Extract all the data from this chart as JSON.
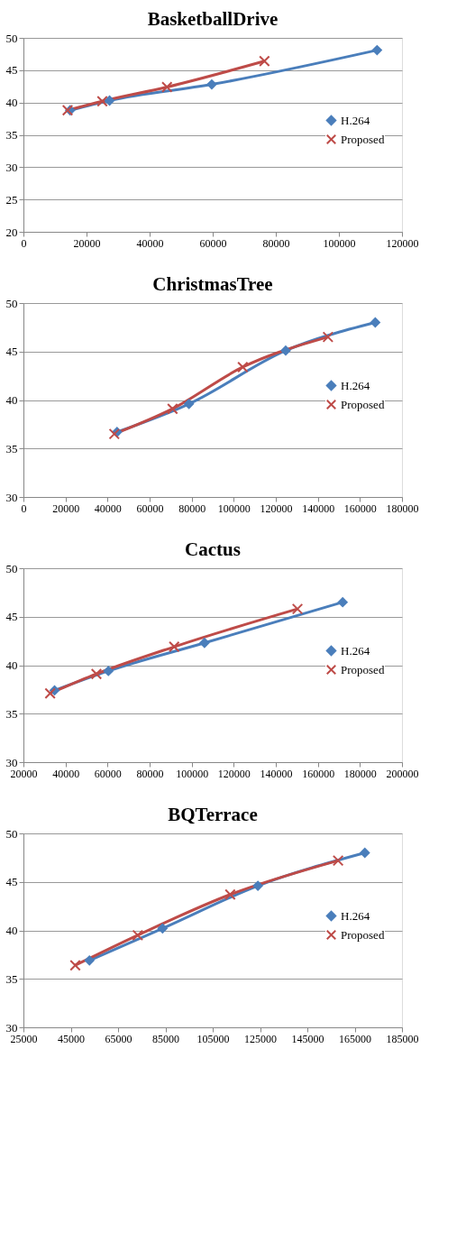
{
  "chart_data": [
    {
      "type": "line",
      "title": "BasketballDrive",
      "xlim": [
        0,
        120000
      ],
      "xticks": [
        0,
        20000,
        40000,
        60000,
        80000,
        100000,
        120000
      ],
      "ylim": [
        20,
        50
      ],
      "yticks": [
        20,
        25,
        30,
        35,
        40,
        45,
        50
      ],
      "grid": "y",
      "legend": "right",
      "series": [
        {
          "name": "H.264",
          "color": "#4a7ebb",
          "marker": "diamond",
          "x": [
            14800,
            27300,
            59700,
            112100
          ],
          "values": [
            38.8,
            40.3,
            42.8,
            48.1
          ]
        },
        {
          "name": "Proposed",
          "color": "#be4b48",
          "marker": "cross",
          "x": [
            14000,
            25000,
            45500,
            76400
          ],
          "values": [
            38.8,
            40.2,
            42.4,
            46.4
          ]
        }
      ]
    },
    {
      "type": "line",
      "title": "ChristmasTree",
      "xlim": [
        0,
        180000
      ],
      "xticks": [
        0,
        20000,
        40000,
        60000,
        80000,
        100000,
        120000,
        140000,
        160000,
        180000
      ],
      "ylim": [
        30,
        50
      ],
      "yticks": [
        30,
        35,
        40,
        45,
        50
      ],
      "grid": "y",
      "legend": "right",
      "series": [
        {
          "name": "H.264",
          "color": "#4a7ebb",
          "marker": "diamond",
          "x": [
            44500,
            78700,
            124700,
            167300
          ],
          "values": [
            36.7,
            39.6,
            45.1,
            48.0
          ]
        },
        {
          "name": "Proposed",
          "color": "#be4b48",
          "marker": "cross",
          "x": [
            43200,
            70900,
            104300,
            144800
          ],
          "values": [
            36.5,
            39.1,
            43.4,
            46.5
          ]
        }
      ]
    },
    {
      "type": "line",
      "title": "Cactus",
      "xlim": [
        20000,
        200000
      ],
      "xticks": [
        20000,
        40000,
        60000,
        80000,
        100000,
        120000,
        140000,
        160000,
        180000,
        200000
      ],
      "ylim": [
        30,
        50
      ],
      "yticks": [
        30,
        35,
        40,
        45,
        50
      ],
      "grid": "y",
      "legend": "right",
      "series": [
        {
          "name": "H.264",
          "color": "#4a7ebb",
          "marker": "diamond",
          "x": [
            34800,
            60400,
            106100,
            171800
          ],
          "values": [
            37.4,
            39.4,
            42.3,
            46.5
          ]
        },
        {
          "name": "Proposed",
          "color": "#be4b48",
          "marker": "cross",
          "x": [
            32700,
            54700,
            91700,
            150300
          ],
          "values": [
            37.1,
            39.1,
            41.9,
            45.8
          ]
        }
      ]
    },
    {
      "type": "line",
      "title": "BQTerrace",
      "xlim": [
        25000,
        185000
      ],
      "xticks": [
        25000,
        45000,
        65000,
        85000,
        105000,
        125000,
        145000,
        165000,
        185000
      ],
      "ylim": [
        30,
        50
      ],
      "yticks": [
        30,
        35,
        40,
        45,
        50
      ],
      "grid": "y",
      "legend": "right",
      "series": [
        {
          "name": "H.264",
          "color": "#4a7ebb",
          "marker": "diamond",
          "x": [
            52900,
            83800,
            124100,
            169300
          ],
          "values": [
            36.9,
            40.2,
            44.6,
            48.0
          ]
        },
        {
          "name": "Proposed",
          "color": "#be4b48",
          "marker": "cross",
          "x": [
            46900,
            73300,
            112400,
            158000
          ],
          "values": [
            36.4,
            39.5,
            43.7,
            47.2
          ]
        }
      ]
    }
  ]
}
